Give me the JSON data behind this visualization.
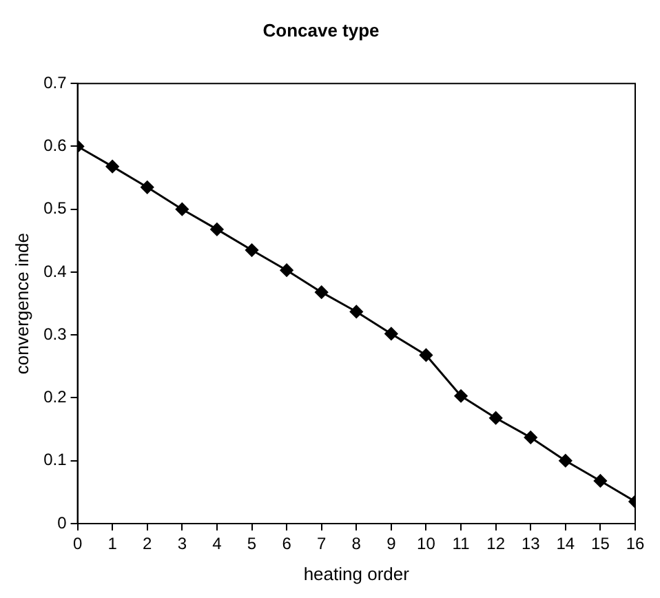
{
  "chart_data": {
    "type": "line",
    "title": "Concave type",
    "xlabel": "heating order",
    "ylabel": "convergence inde",
    "x": [
      0,
      1,
      2,
      3,
      4,
      5,
      6,
      7,
      8,
      9,
      10,
      11,
      12,
      13,
      14,
      15,
      16
    ],
    "series": [
      {
        "color": "#000000",
        "values": [
          0.6,
          0.568,
          0.535,
          0.5,
          0.468,
          0.435,
          0.403,
          0.368,
          0.337,
          0.302,
          0.268,
          0.203,
          0.168,
          0.137,
          0.1,
          0.068,
          0.035
        ]
      }
    ],
    "xlim": [
      0,
      16
    ],
    "xticks": [
      0,
      1,
      2,
      3,
      4,
      5,
      6,
      7,
      8,
      9,
      10,
      11,
      12,
      13,
      14,
      15,
      16
    ],
    "ylim": [
      0,
      0.7
    ],
    "yticks": [
      0,
      0.1,
      0.2,
      0.3,
      0.4,
      0.5,
      0.6,
      0.7
    ],
    "grid": false,
    "legend": false,
    "marker": "diamond",
    "line_style": "solid"
  }
}
